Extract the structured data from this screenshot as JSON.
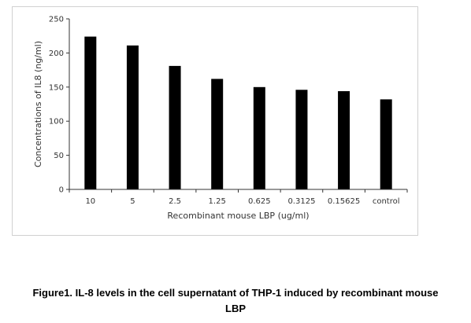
{
  "chart_data": {
    "type": "bar",
    "categories": [
      "10",
      "5",
      "2.5",
      "1.25",
      "0.625",
      "0.3125",
      "0.15625",
      "control"
    ],
    "values": [
      224,
      211,
      181,
      162,
      150,
      146,
      144,
      132
    ],
    "xlabel": "Recombinant mouse LBP (ug/ml)",
    "ylabel": "Concentrations of IL8 (ng/ml)",
    "ylim": [
      0,
      250
    ],
    "yticks": [
      "0",
      "50",
      "100",
      "150",
      "200",
      "250"
    ],
    "bar_color": "#000000",
    "grid": false,
    "legend": "none"
  },
  "caption": {
    "line1": "Figure1. IL-8 levels in the cell supernatant of THP-1 induced by recombinant mouse",
    "line2": "LBP"
  }
}
